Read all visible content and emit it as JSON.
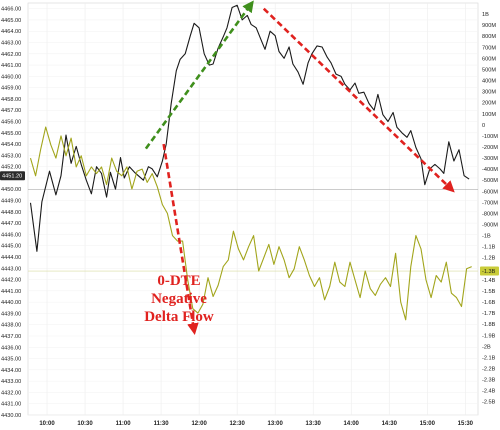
{
  "chart_data": {
    "type": "line",
    "title": "",
    "xlabel": "",
    "ylabel_left": "",
    "ylabel_right": "",
    "grid": true,
    "x_ticks": [
      "10:00",
      "10:30",
      "11:00",
      "11:30",
      "12:00",
      "12:30",
      "13:00",
      "13:30",
      "14:00",
      "14:30",
      "15:00",
      "15:30"
    ],
    "x_tick_minutes": [
      600,
      630,
      660,
      690,
      720,
      750,
      780,
      810,
      840,
      870,
      900,
      930
    ],
    "x_range_minutes": [
      585,
      940
    ],
    "left_axis": {
      "ylim": [
        4430,
        4466.5
      ],
      "tick_values": [
        4430,
        4431,
        4432,
        4433,
        4434,
        4435,
        4436,
        4437,
        4438,
        4439,
        4440,
        4441,
        4442,
        4443,
        4444,
        4445,
        4446,
        4447,
        4448,
        4449,
        4450,
        4451,
        4452,
        4453,
        4454,
        4455,
        4456,
        4457,
        4458,
        4459,
        4460,
        4461,
        4462,
        4463,
        4464,
        4465,
        4466
      ],
      "tick_labels": [
        "4430.00",
        "4431.00",
        "4432.00",
        "4433.00",
        "4434.00",
        "4435.00",
        "4436.00",
        "4437.00",
        "4438.00",
        "4439.00",
        "4440.00",
        "4441.00",
        "4442.00",
        "4443.00",
        "4444.00",
        "4445.00",
        "4446.00",
        "4447.00",
        "4448.00",
        "4449.00",
        "4450.00",
        "4451.00",
        "4452.00",
        "4453.00",
        "4454.00",
        "4455.00",
        "4456.00",
        "4457.00",
        "4458.00",
        "4459.00",
        "4460.00",
        "4461.00",
        "4462.00",
        "4463.00",
        "4464.00",
        "4465.00",
        "4466.00"
      ]
    },
    "right_axis": {
      "ylim": [
        -2.62,
        1.1
      ],
      "tick_values": [
        1.0,
        0.9,
        0.8,
        0.7,
        0.6,
        0.5,
        0.4,
        0.3,
        0.2,
        0.1,
        0.0,
        -0.1,
        -0.2,
        -0.3,
        -0.4,
        -0.5,
        -0.6,
        -0.7,
        -0.8,
        -0.9,
        -1.0,
        -1.1,
        -1.2,
        -1.3,
        -1.4,
        -1.5,
        -1.6,
        -1.7,
        -1.8,
        -1.9,
        -2.0,
        -2.1,
        -2.2,
        -2.3,
        -2.4,
        -2.5
      ],
      "tick_labels": [
        "1B",
        "900M",
        "800M",
        "700M",
        "600M",
        "500M",
        "400M",
        "300M",
        "200M",
        "100M",
        "0",
        "-100M",
        "-200M",
        "-300M",
        "-400M",
        "-500M",
        "-600M",
        "-700M",
        "-800M",
        "-900M",
        "-1B",
        "-1.1B",
        "-1.2B",
        "-1.3B",
        "-1.4B",
        "-1.5B",
        "-1.6B",
        "-1.7B",
        "-1.8B",
        "-1.9B",
        "-2B",
        "-2.1B",
        "-2.2B",
        "-2.3B",
        "-2.4B",
        "-2.5B"
      ]
    },
    "series": [
      {
        "axis": "left",
        "color": "#1a1a1a",
        "x": [
          587,
          592,
          596,
          602,
          607,
          611,
          615,
          619,
          623,
          627,
          631,
          635,
          639,
          643,
          647,
          650,
          654,
          658,
          661,
          665,
          669,
          672,
          676,
          680,
          683,
          687,
          691,
          694,
          698,
          702,
          705,
          709,
          713,
          716,
          720,
          724,
          728,
          731,
          735,
          739,
          742,
          746,
          750,
          754,
          758,
          761,
          765,
          769,
          772,
          776,
          780,
          783,
          787,
          791,
          794,
          798,
          802,
          806,
          809,
          813,
          817,
          821,
          824,
          828,
          832,
          835,
          839,
          843,
          846,
          850,
          854,
          858,
          861,
          865,
          869,
          873,
          876,
          880,
          884,
          887,
          891,
          895,
          898,
          902,
          906,
          910,
          913,
          917,
          921,
          925,
          929,
          933
        ],
        "values": [
          4448.8,
          4444.5,
          4448.9,
          4451.6,
          4449.5,
          4451.2,
          4454.8,
          4452.3,
          4453.8,
          4452.2,
          4450.8,
          4449.6,
          4452.0,
          4451.4,
          4449.3,
          4451.5,
          4450.0,
          4452.8,
          4451.0,
          4452.0,
          4451.5,
          4451.2,
          4450.8,
          4452.0,
          4451.8,
          4451.1,
          4452.5,
          4454.0,
          4457.6,
          4460.5,
          4461.5,
          4462.0,
          4463.6,
          4464.7,
          4464.3,
          4462.0,
          4461.0,
          4461.1,
          4462.5,
          4463.5,
          4464.3,
          4466.1,
          4466.3,
          4465.0,
          4465.4,
          4464.6,
          4464.3,
          4463.2,
          4462.4,
          4464.0,
          4463.6,
          4462.2,
          4461.6,
          4462.6,
          4461.1,
          4460.4,
          4459.3,
          4461.2,
          4462.0,
          4462.7,
          4462.6,
          4461.7,
          4461.2,
          4460.2,
          4460.0,
          4459.3,
          4458.8,
          4459.4,
          4458.5,
          4458.6,
          4457.6,
          4457.0,
          4458.4,
          4456.6,
          4456.0,
          4456.8,
          4455.5,
          4455.0,
          4454.6,
          4455.2,
          4453.7,
          4452.7,
          4450.4,
          4451.8,
          4452.2,
          4451.8,
          4451.4,
          4454.2,
          4452.5,
          4453.5,
          4451.2,
          4450.9
        ]
      },
      {
        "axis": "right",
        "color": "#a2a51c",
        "x": [
          587,
          591,
          595,
          599,
          603,
          607,
          611,
          615,
          619,
          623,
          627,
          631,
          635,
          639,
          643,
          647,
          651,
          655,
          659,
          663,
          667,
          671,
          675,
          679,
          683,
          687,
          691,
          695,
          699,
          703,
          707,
          711,
          715,
          719,
          723,
          727,
          731,
          735,
          739,
          743,
          747,
          751,
          755,
          759,
          763,
          767,
          771,
          775,
          779,
          783,
          787,
          791,
          795,
          799,
          803,
          807,
          811,
          815,
          819,
          823,
          827,
          831,
          835,
          839,
          843,
          847,
          851,
          855,
          859,
          863,
          867,
          871,
          875,
          879,
          883,
          887,
          891,
          895,
          899,
          903,
          907,
          911,
          915,
          919,
          923,
          927,
          931,
          935
        ],
        "values": [
          -0.3,
          -0.46,
          -0.22,
          -0.02,
          -0.18,
          -0.3,
          -0.1,
          -0.28,
          -0.12,
          -0.38,
          -0.28,
          -0.46,
          -0.38,
          -0.44,
          -0.38,
          -0.54,
          -0.3,
          -0.42,
          -0.46,
          -0.38,
          -0.58,
          -0.42,
          -0.4,
          -0.52,
          -0.44,
          -0.56,
          -0.72,
          -0.8,
          -1.0,
          -1.05,
          -1.05,
          -1.4,
          -1.66,
          -1.7,
          -1.62,
          -1.38,
          -1.55,
          -1.45,
          -1.28,
          -1.22,
          -0.96,
          -1.12,
          -1.22,
          -1.1,
          -1.0,
          -1.32,
          -1.2,
          -1.08,
          -1.26,
          -1.1,
          -1.22,
          -1.38,
          -1.3,
          -1.1,
          -1.22,
          -1.36,
          -1.46,
          -1.38,
          -1.58,
          -1.46,
          -1.24,
          -1.42,
          -1.46,
          -1.24,
          -1.4,
          -1.56,
          -1.32,
          -1.48,
          -1.54,
          -1.44,
          -1.38,
          -1.46,
          -1.16,
          -1.6,
          -1.76,
          -1.28,
          -1.0,
          -1.12,
          -1.4,
          -1.56,
          -1.36,
          -1.42,
          -1.24,
          -1.52,
          -1.56,
          -1.64,
          -1.3,
          -1.28
        ]
      }
    ],
    "reference_line": {
      "axis": "left",
      "value": 4450.0,
      "color": "#9a9a9a"
    },
    "price_badge": {
      "label": "4451.20",
      "value": 4451.2
    },
    "flow_badge": {
      "label": "-1.3B",
      "value": -1.32
    },
    "right_axis_top_label": "1B",
    "arrows": [
      {
        "color": "#3f8f1c",
        "from": {
          "x": 678,
          "y": 4453.6
        },
        "to": {
          "x": 761,
          "y": 4466.4
        }
      },
      {
        "color": "#e0221f",
        "from": {
          "x": 771,
          "y": 4466.0
        },
        "to": {
          "x": 919,
          "y": 4450.0
        }
      },
      {
        "color": "#e0221f",
        "from": {
          "x": 692,
          "y": 4454.0
        },
        "to": {
          "x": 716,
          "y": 4437.5
        }
      }
    ],
    "annotation": {
      "lines": [
        "0-DTE",
        "Negative",
        "Delta Flow"
      ],
      "color": "#e0221f"
    }
  }
}
